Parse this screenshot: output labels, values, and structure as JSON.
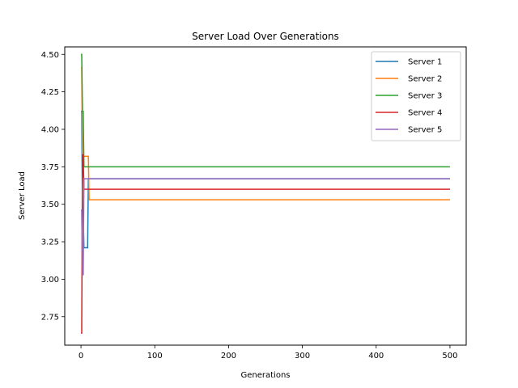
{
  "chart_data": {
    "type": "line",
    "title": "Server Load Over Generations",
    "xlabel": "Generations",
    "ylabel": "Server Load",
    "xlim": [
      -22,
      522
    ],
    "ylim": [
      2.56,
      4.55
    ],
    "xticks": [
      0,
      100,
      200,
      300,
      400,
      500
    ],
    "yticks": [
      2.75,
      3.0,
      3.25,
      3.5,
      3.75,
      4.0,
      4.25,
      4.5
    ],
    "ytick_labels": [
      "2.75",
      "3.00",
      "3.25",
      "3.50",
      "3.75",
      "4.00",
      "4.25",
      "4.50"
    ],
    "grid": false,
    "legend": "top-right",
    "series": [
      {
        "name": "Server 1",
        "color": "#1f77b4",
        "points": [
          [
            0,
            4.12
          ],
          [
            1,
            4.12
          ],
          [
            2,
            3.46
          ],
          [
            3,
            3.46
          ],
          [
            4,
            3.21
          ],
          [
            9,
            3.21
          ],
          [
            10,
            3.67
          ],
          [
            500,
            3.67
          ]
        ]
      },
      {
        "name": "Server 2",
        "color": "#ff7f0e",
        "points": [
          [
            0,
            4.41
          ],
          [
            1,
            4.41
          ],
          [
            2,
            3.82
          ],
          [
            10,
            3.82
          ],
          [
            11,
            3.53
          ],
          [
            500,
            3.53
          ]
        ]
      },
      {
        "name": "Server 3",
        "color": "#2ca02c",
        "points": [
          [
            0,
            4.5
          ],
          [
            1,
            4.5
          ],
          [
            2,
            4.12
          ],
          [
            3,
            4.12
          ],
          [
            4,
            3.75
          ],
          [
            500,
            3.75
          ]
        ]
      },
      {
        "name": "Server 4",
        "color": "#d62728",
        "points": [
          [
            0,
            2.64
          ],
          [
            1,
            2.64
          ],
          [
            2,
            3.83
          ],
          [
            3,
            3.83
          ],
          [
            4,
            3.6
          ],
          [
            500,
            3.6
          ]
        ]
      },
      {
        "name": "Server 5",
        "color": "#9467bd",
        "points": [
          [
            0,
            3.46
          ],
          [
            1,
            3.46
          ],
          [
            2,
            3.03
          ],
          [
            3,
            3.03
          ],
          [
            4,
            3.67
          ],
          [
            500,
            3.67
          ]
        ]
      }
    ]
  }
}
